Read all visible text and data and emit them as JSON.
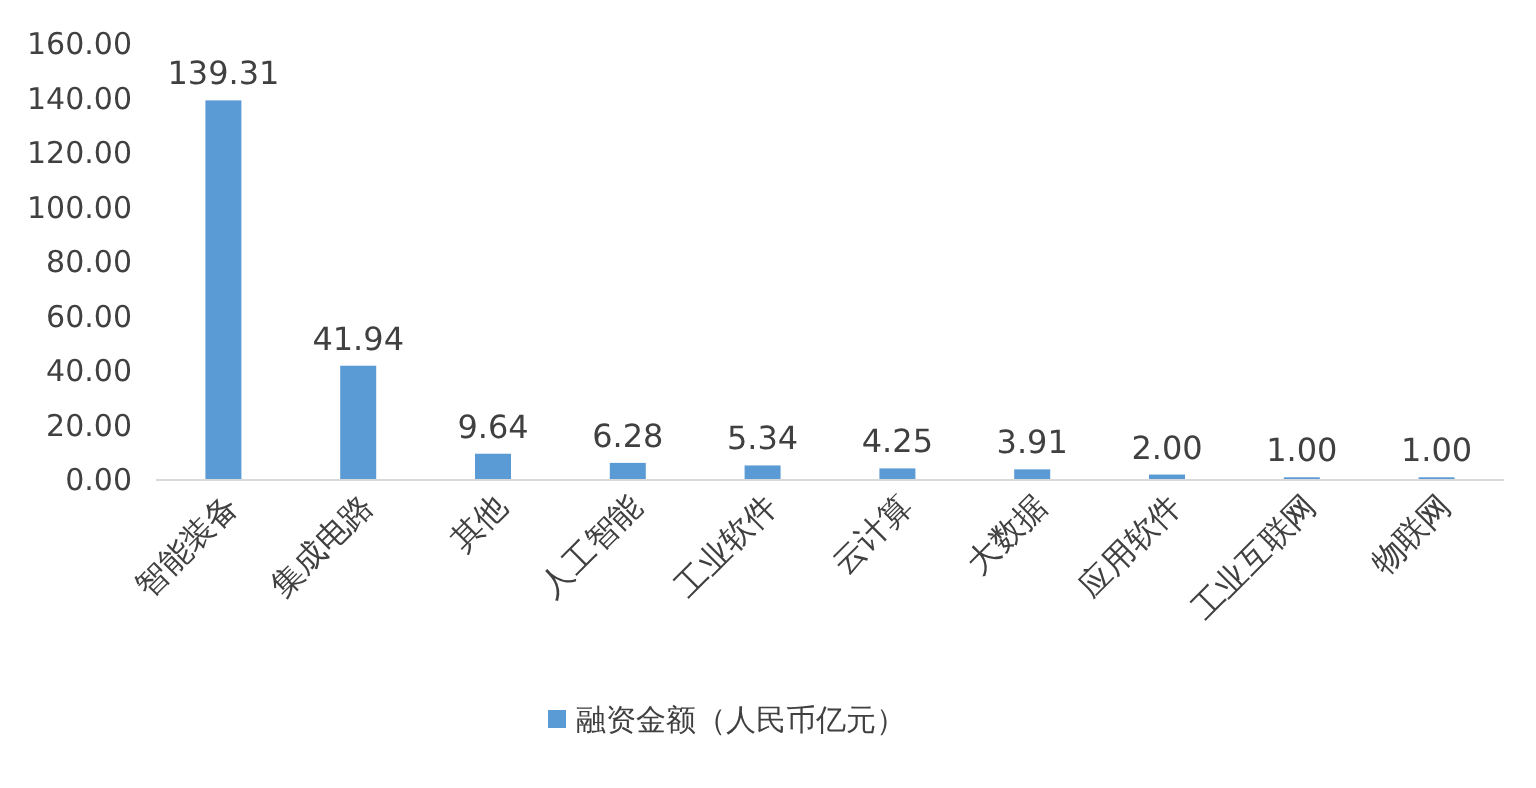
{
  "chart_data": {
    "type": "bar",
    "categories": [
      "智能装备",
      "集成电路",
      "其他",
      "人工智能",
      "工业软件",
      "云计算",
      "大数据",
      "应用软件",
      "工业互联网",
      "物联网"
    ],
    "series": [
      {
        "name": "融资金额（人民币亿元）",
        "color": "#5b9bd5",
        "values": [
          139.31,
          41.94,
          9.64,
          6.28,
          5.34,
          4.25,
          3.91,
          2.0,
          1.0,
          1.0
        ],
        "value_labels": [
          "139.31",
          "41.94",
          "9.64",
          "6.28",
          "5.34",
          "4.25",
          "3.91",
          "2.00",
          "1.00",
          "1.00"
        ]
      }
    ],
    "ylim": [
      0,
      160
    ],
    "yticks": [
      {
        "value": 0,
        "label": "0.00"
      },
      {
        "value": 20,
        "label": "20.00"
      },
      {
        "value": 40,
        "label": "40.00"
      },
      {
        "value": 60,
        "label": "60.00"
      },
      {
        "value": 80,
        "label": "80.00"
      },
      {
        "value": 100,
        "label": "100.00"
      },
      {
        "value": 120,
        "label": "120.00"
      },
      {
        "value": 140,
        "label": "140.00"
      },
      {
        "value": 160,
        "label": "160.00"
      }
    ],
    "legend": "bottom"
  }
}
